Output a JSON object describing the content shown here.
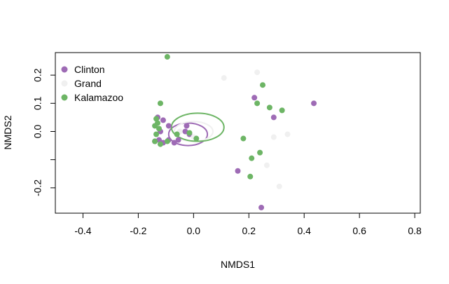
{
  "chart_data": {
    "type": "scatter",
    "title": "",
    "xlabel": "NMDS1",
    "ylabel": "NMDS2",
    "xlim": [
      -0.5,
      0.82
    ],
    "ylim": [
      -0.29,
      0.28
    ],
    "x_ticks": [
      -0.4,
      -0.2,
      0.0,
      0.2,
      0.4,
      0.6,
      0.8
    ],
    "x_tick_labels": [
      "-0.4",
      "-0.2",
      "0.0",
      "0.2",
      "0.4",
      "0.6",
      "0.8"
    ],
    "y_ticks": [
      -0.2,
      -0.1,
      0.0,
      0.1,
      0.2
    ],
    "y_tick_labels": [
      "-0.2",
      "",
      "0.0",
      "0.1",
      "0.2"
    ],
    "grid": false,
    "legend_position": "top-left",
    "series": [
      {
        "name": "Clinton",
        "color": "#9E6BB5",
        "points": [
          [
            -0.13,
            0.05
          ],
          [
            -0.11,
            0.04
          ],
          [
            -0.09,
            0.02
          ],
          [
            -0.025,
            0.02
          ],
          [
            -0.03,
            0.0
          ],
          [
            -0.015,
            -0.01
          ],
          [
            -0.12,
            0.0
          ],
          [
            -0.14,
            -0.035
          ],
          [
            -0.125,
            -0.03
          ],
          [
            -0.11,
            -0.04
          ],
          [
            -0.07,
            -0.04
          ],
          [
            -0.055,
            -0.03
          ],
          [
            0.16,
            -0.14
          ],
          [
            0.22,
            0.12
          ],
          [
            0.29,
            0.05
          ],
          [
            0.435,
            0.1
          ],
          [
            0.245,
            -0.27
          ],
          [
            -0.09,
            -0.03
          ]
        ],
        "ellipse": {
          "cx": -0.02,
          "cy": -0.01,
          "rx": 0.07,
          "ry": 0.04
        }
      },
      {
        "name": "Grand",
        "color": "#F0F0F0",
        "points": [
          [
            0.11,
            0.19
          ],
          [
            0.23,
            0.21
          ],
          [
            0.34,
            -0.01
          ],
          [
            0.29,
            -0.02
          ],
          [
            0.265,
            -0.12
          ],
          [
            0.31,
            -0.195
          ],
          [
            0.0,
            -0.02
          ],
          [
            -0.05,
            0.0
          ]
        ],
        "ellipse": {
          "cx": 0.0,
          "cy": 0.0,
          "rx": 0.07,
          "ry": 0.035
        }
      },
      {
        "name": "Kalamazoo",
        "color": "#6DB565",
        "points": [
          [
            -0.095,
            0.265
          ],
          [
            -0.12,
            0.1
          ],
          [
            -0.135,
            0.045
          ],
          [
            -0.14,
            0.02
          ],
          [
            -0.125,
            0.01
          ],
          [
            -0.135,
            -0.01
          ],
          [
            -0.14,
            -0.035
          ],
          [
            -0.12,
            -0.045
          ],
          [
            -0.095,
            -0.035
          ],
          [
            -0.06,
            -0.01
          ],
          [
            -0.015,
            -0.005
          ],
          [
            0.01,
            -0.025
          ],
          [
            0.23,
            0.1
          ],
          [
            0.25,
            0.165
          ],
          [
            0.275,
            0.085
          ],
          [
            0.32,
            0.075
          ],
          [
            0.18,
            -0.025
          ],
          [
            0.21,
            -0.095
          ],
          [
            0.24,
            -0.075
          ],
          [
            0.205,
            -0.16
          ],
          [
            -0.13,
            0.03
          ]
        ],
        "ellipse": {
          "cx": 0.015,
          "cy": 0.015,
          "rx": 0.095,
          "ry": 0.05
        }
      }
    ]
  }
}
